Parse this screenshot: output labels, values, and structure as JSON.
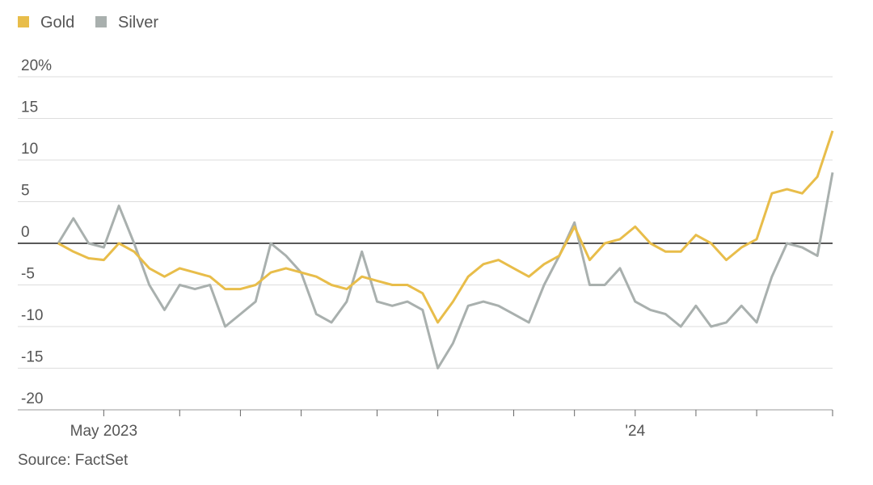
{
  "chart_data": {
    "type": "line",
    "categories": [
      null,
      null,
      null,
      "May 2023",
      null,
      null,
      null,
      null,
      null,
      null,
      null,
      null,
      null,
      null,
      null,
      null,
      null,
      null,
      null,
      null,
      null,
      null,
      null,
      null,
      null,
      null,
      null,
      null,
      null,
      null,
      null,
      null,
      null,
      null,
      null,
      null,
      null,
      null,
      "'24",
      null,
      null,
      null,
      null,
      null,
      null,
      null,
      null,
      null,
      null,
      null,
      null,
      null
    ],
    "xticks": [
      3,
      8,
      12,
      16,
      21,
      25,
      30,
      34,
      38,
      42,
      46,
      51
    ],
    "series": [
      {
        "name": "Gold",
        "color": "#e8bd4a",
        "values": [
          0,
          -1,
          -1.8,
          -2,
          0,
          -1,
          -3,
          -4,
          -3,
          -3.5,
          -4,
          -5.5,
          -5.5,
          -5,
          -3.5,
          -3,
          -3.5,
          -4,
          -5,
          -5.5,
          -4,
          -4.5,
          -5,
          -5,
          -6,
          -9.5,
          -7,
          -4,
          -2.5,
          -2,
          -3,
          -4,
          -2.5,
          -1.5,
          2,
          -2,
          0,
          0.5,
          2,
          0,
          -1,
          -1,
          1,
          0,
          -2,
          -0.5,
          0.5,
          6,
          6.5,
          6,
          8,
          13.5
        ]
      },
      {
        "name": "Silver",
        "color": "#a9b0ae",
        "values": [
          0,
          3,
          0,
          -0.5,
          4.5,
          0,
          -5,
          -8,
          -5,
          -5.5,
          -5,
          -10,
          -8.5,
          -7,
          0,
          -1.5,
          -3.5,
          -8.5,
          -9.5,
          -7,
          -1,
          -7,
          -7.5,
          -7,
          -8,
          -15,
          -12,
          -7.5,
          -7,
          -7.5,
          -8.5,
          -9.5,
          -5,
          -1.5,
          2.5,
          -5,
          -5,
          -3,
          -7,
          -8,
          -8.5,
          -10,
          -7.5,
          -10,
          -9.5,
          -7.5,
          -9.5,
          -4,
          0,
          -0.5,
          -1.5,
          8.5
        ]
      }
    ],
    "ylim": [
      -20,
      20
    ],
    "yticks": [
      {
        "value": 20,
        "label": "20%"
      },
      15,
      10,
      5,
      0,
      -5,
      -10,
      -15,
      -20
    ],
    "grid": true,
    "source": "Source: FactSet"
  }
}
